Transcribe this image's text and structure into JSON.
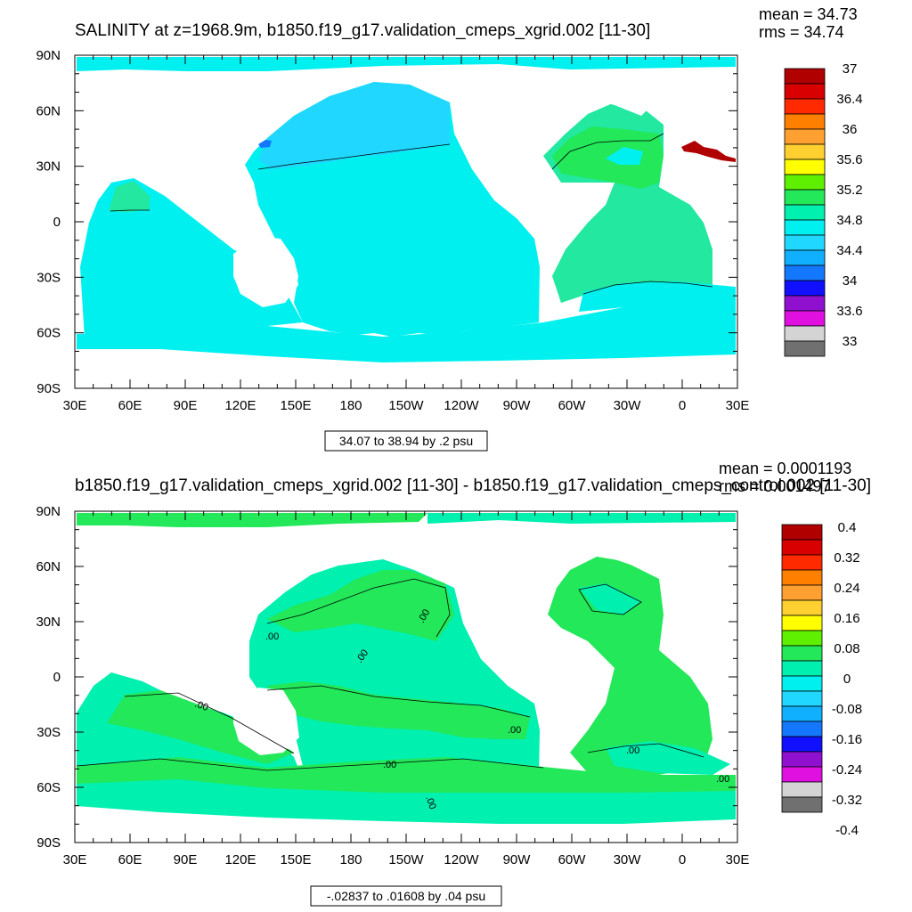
{
  "chart_data": [
    {
      "type": "heatmap",
      "title": "SALINITY at z=1968.9m, b1850.f19_g17.validation_cmeps_xgrid.002 [11-30]",
      "stats": {
        "mean": "mean = 34.73",
        "rms": "rms = 34.74"
      },
      "note": "34.07 to 38.94 by .2 psu",
      "xticks": [
        "30E",
        "60E",
        "90E",
        "120E",
        "150E",
        "180",
        "150W",
        "120W",
        "90W",
        "60W",
        "30W",
        "0",
        "30E"
      ],
      "yticks": [
        "90N",
        "60N",
        "30N",
        "0",
        "30S",
        "60S",
        "90S"
      ],
      "colorbar": {
        "labels": [
          "37",
          "36.4",
          "36",
          "35.6",
          "35.2",
          "34.8",
          "34.4",
          "34",
          "33.6",
          "33"
        ],
        "colors": [
          "#b00000",
          "#d80000",
          "#ff2a00",
          "#ff7f00",
          "#ffa030",
          "#ffd030",
          "#ffff00",
          "#5ef000",
          "#22e85a",
          "#00f0b0",
          "#00f0f0",
          "#20d8ff",
          "#10b0ff",
          "#1478ff",
          "#1010ff",
          "#9010d0",
          "#e010e0",
          "#d4d4d4",
          "#707070"
        ]
      },
      "contour_labels": []
    },
    {
      "type": "heatmap",
      "title": "b1850.f19_g17.validation_cmeps_xgrid.002 [11-30] - b1850.f19_g17.validation_cmeps_control.002 [11-30]",
      "stats": {
        "mean": "mean = 0.0001193",
        "rms": "rms = 0.001497"
      },
      "note": "-.02837 to .01608 by .04 psu",
      "xticks": [
        "30E",
        "60E",
        "90E",
        "120E",
        "150E",
        "180",
        "150W",
        "120W",
        "90W",
        "60W",
        "30W",
        "0",
        "30E"
      ],
      "yticks": [
        "90N",
        "60N",
        "30N",
        "0",
        "30S",
        "60S",
        "90S"
      ],
      "colorbar": {
        "labels": [
          "0.4",
          "0.32",
          "0.24",
          "0.16",
          "0.08",
          "0",
          "-0.08",
          "-0.16",
          "-0.24",
          "-0.32",
          "-0.4"
        ],
        "colors": [
          "#b00000",
          "#d80000",
          "#ff2a00",
          "#ff7f00",
          "#ffa030",
          "#ffd030",
          "#ffff00",
          "#5ef000",
          "#22e85a",
          "#00f0b0",
          "#00f0f0",
          "#20d8ff",
          "#10b0ff",
          "#1478ff",
          "#1010ff",
          "#9010d0",
          "#e010e0",
          "#d4d4d4",
          "#707070"
        ]
      },
      "contour_labels": [
        ".00",
        ".00",
        ".00",
        ".00",
        ".00",
        ".00",
        ".00",
        ".00",
        ".00"
      ]
    }
  ]
}
